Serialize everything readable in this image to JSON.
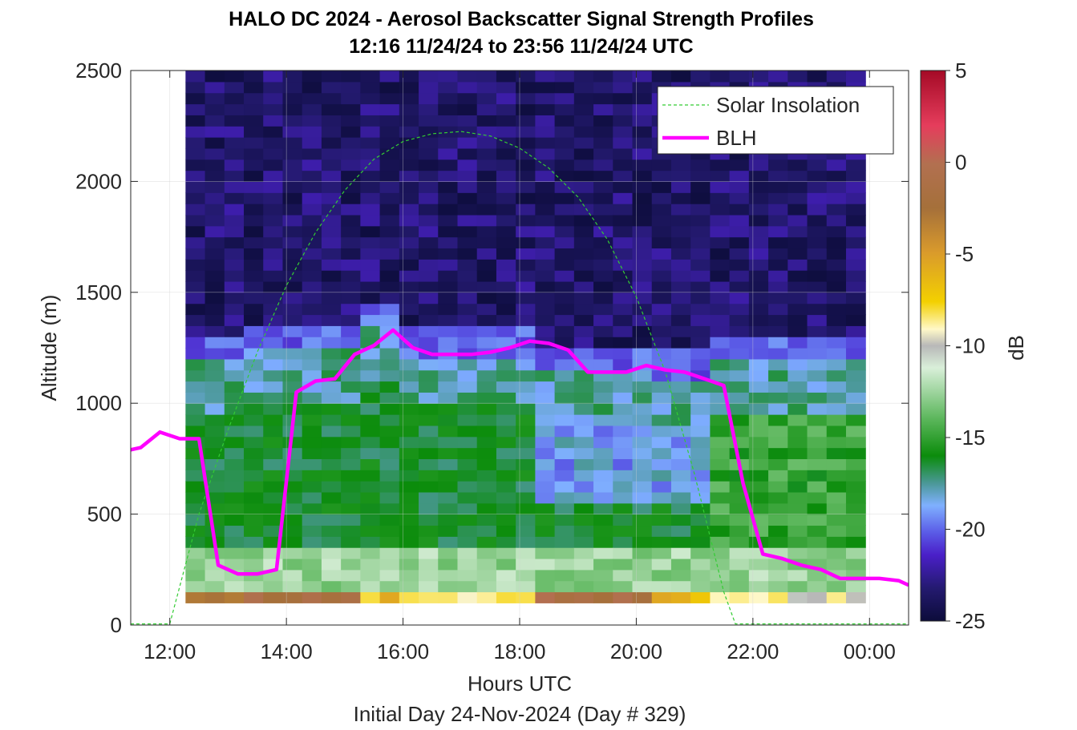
{
  "title": "HALO DC 2024 - Aerosol Backscatter Signal Strength Profiles",
  "subtitle": "12:16 11/24/24 to 23:56 11/24/24  UTC",
  "footer": "Initial Day 24-Nov-2024 (Day # 329)",
  "chart_data": {
    "type": "heatmap",
    "xlabel": "Hours UTC",
    "ylabel": "Altitude (m)",
    "xlim": [
      11.33,
      24.67
    ],
    "ylim": [
      0,
      2500
    ],
    "xticks": [
      12,
      14,
      16,
      18,
      20,
      22,
      24
    ],
    "xtick_labels": [
      "12:00",
      "14:00",
      "16:00",
      "18:00",
      "20:00",
      "22:00",
      "00:00"
    ],
    "yticks": [
      0,
      500,
      1000,
      1500,
      2000,
      2500
    ],
    "ytick_labels": [
      "0",
      "500",
      "1000",
      "1500",
      "2000",
      "2500"
    ],
    "grid": true,
    "colorbar": {
      "label": "dB",
      "range": [
        -25,
        5
      ],
      "ticks": [
        5,
        0,
        -5,
        -10,
        -15,
        -20,
        -25
      ],
      "tick_labels": [
        "5",
        "0",
        "-5",
        "-10",
        "-15",
        "-20",
        "-25"
      ]
    },
    "heatmap": {
      "x_start": 12.27,
      "x_end": 23.93,
      "y_start": 100,
      "y_end": 2500,
      "x_bins": 35,
      "columns": [
        {
          "x_end": 13.3,
          "surface": -3,
          "aerosol_top": 1100,
          "bl_pattern": "green"
        },
        {
          "x_end": 15.3,
          "surface": -1,
          "aerosol_top": 1150,
          "bl_pattern": "green"
        },
        {
          "x_end": 16.0,
          "surface": -7,
          "aerosol_top": 1250,
          "bl_pattern": "green"
        },
        {
          "x_end": 18.3,
          "surface": -8,
          "aerosol_top": 1130,
          "bl_pattern": "green-dense"
        },
        {
          "x_end": 20.3,
          "surface": -1,
          "aerosol_top": 1050,
          "bl_pattern": "mixed-blue"
        },
        {
          "x_end": 21.3,
          "surface": -7,
          "aerosol_top": 1030,
          "bl_pattern": "mixed-blue"
        },
        {
          "x_end": 23.93,
          "surface": -9,
          "aerosol_top": 1100,
          "bl_pattern": "fading"
        }
      ]
    },
    "series": [
      {
        "name": "Solar Insolation",
        "color": "#33cc33",
        "style": "dashed",
        "x": [
          11.33,
          12.0,
          12.5,
          13.0,
          13.5,
          14.0,
          14.5,
          15.0,
          15.5,
          16.0,
          16.5,
          17.0,
          17.5,
          18.0,
          18.5,
          19.0,
          19.5,
          20.0,
          20.5,
          21.0,
          21.5,
          21.7,
          22.0,
          24.67
        ],
        "y": [
          5,
          5,
          500,
          880,
          1230,
          1530,
          1770,
          1960,
          2100,
          2180,
          2215,
          2225,
          2205,
          2150,
          2060,
          1930,
          1740,
          1480,
          1140,
          680,
          150,
          5,
          5,
          5
        ]
      },
      {
        "name": "BLH",
        "color": "#ff00ff",
        "style": "solid",
        "x": [
          11.33,
          11.5,
          11.83,
          12.17,
          12.5,
          12.83,
          13.17,
          13.5,
          13.83,
          14.17,
          14.5,
          14.83,
          15.17,
          15.5,
          15.83,
          16.17,
          16.5,
          16.83,
          17.17,
          17.5,
          17.83,
          18.17,
          18.5,
          18.83,
          19.17,
          19.5,
          19.83,
          20.17,
          20.5,
          20.83,
          21.17,
          21.5,
          21.83,
          22.17,
          22.5,
          22.83,
          23.17,
          23.5,
          23.83,
          24.17,
          24.5,
          24.67
        ],
        "y": [
          790,
          800,
          870,
          840,
          840,
          270,
          230,
          230,
          250,
          1050,
          1100,
          1110,
          1220,
          1260,
          1330,
          1250,
          1220,
          1220,
          1220,
          1230,
          1250,
          1280,
          1270,
          1240,
          1140,
          1140,
          1140,
          1170,
          1150,
          1140,
          1110,
          1080,
          640,
          320,
          300,
          270,
          250,
          210,
          210,
          210,
          200,
          180
        ]
      }
    ],
    "legend": {
      "position": "top-right",
      "entries": [
        "Solar Insolation",
        "BLH"
      ]
    }
  }
}
